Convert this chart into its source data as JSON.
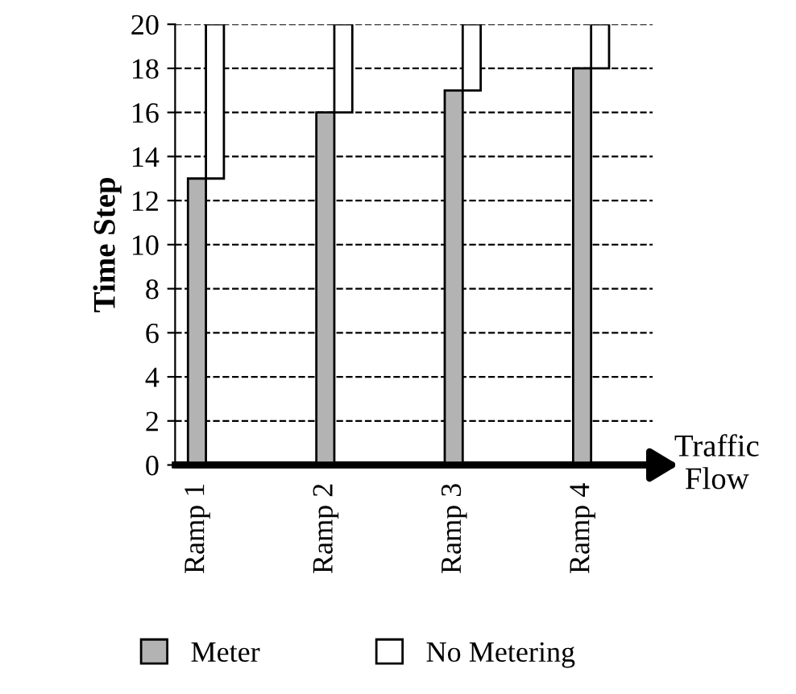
{
  "chart_data": {
    "type": "bar",
    "stacked": true,
    "ylabel": "Time Step",
    "categories": [
      "Ramp 1",
      "Ramp 2",
      "Ramp 3",
      "Ramp 4"
    ],
    "series": [
      {
        "name": "Meter",
        "color": "#b3b3b3",
        "values": [
          13,
          16,
          17,
          18
        ]
      },
      {
        "name": "No Metering",
        "color": "#ffffff",
        "values": [
          7,
          4,
          3,
          2
        ]
      }
    ],
    "ylim": [
      0,
      20
    ],
    "yticks": [
      0,
      2,
      4,
      6,
      8,
      10,
      12,
      14,
      16,
      18,
      20
    ],
    "grid": "y",
    "line_style": "dashed",
    "legend": "bottom",
    "annotations": [
      {
        "text": "Traffic\nFlow"
      }
    ]
  }
}
